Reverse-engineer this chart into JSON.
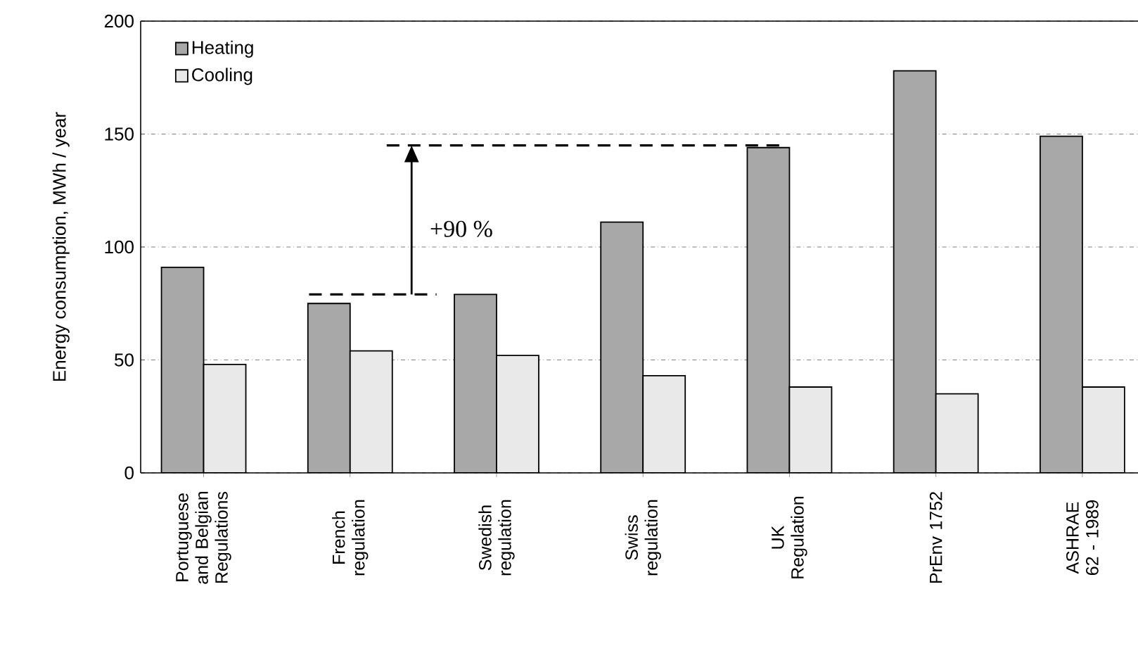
{
  "chart_data": {
    "type": "bar",
    "ylabel": "Energy consumption, MWh / year",
    "categories": [
      "Portuguese and Belgian Regulations",
      "French regulation",
      "Swedish regulation",
      "Swiss regulation",
      "UK Regulation",
      "PrEnv 1752",
      "ASHRAE 62 - 1989"
    ],
    "series": [
      {
        "name": "Heating",
        "color": "#a8a8a8",
        "values": [
          91,
          75,
          79,
          111,
          144,
          178,
          149
        ]
      },
      {
        "name": "Cooling",
        "color": "#e9e9e9",
        "values": [
          48,
          54,
          52,
          43,
          38,
          35,
          38
        ]
      }
    ],
    "ylim": [
      0,
      200
    ],
    "yticks": [
      0,
      50,
      100,
      150,
      200
    ],
    "grid": "y",
    "legend": "top left",
    "ref_lines": [
      {
        "axis": "y",
        "value": 79,
        "line_style": "dashed",
        "color": "#000000"
      },
      {
        "axis": "y",
        "value": 145,
        "line_style": "dashed",
        "color": "#000000"
      }
    ],
    "annotations": [
      "+90 %"
    ]
  }
}
